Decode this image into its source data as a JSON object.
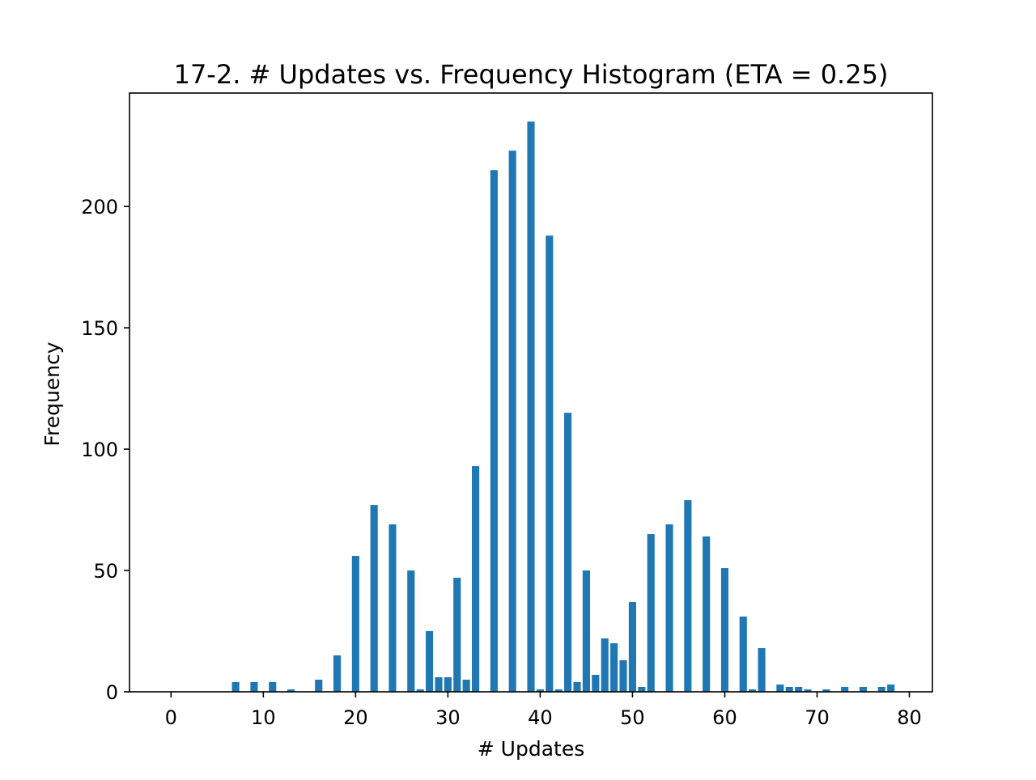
{
  "chart_data": {
    "type": "bar",
    "title": "17-2. # Updates vs. Frequency Histogram (ETA = 0.25)",
    "xlabel": "# Updates",
    "ylabel": "Frequency",
    "xlim": [
      -4.5,
      82.5
    ],
    "ylim": [
      0,
      246.75
    ],
    "xticks": [
      0,
      10,
      20,
      30,
      40,
      50,
      60,
      70,
      80
    ],
    "yticks": [
      0,
      50,
      100,
      150,
      200
    ],
    "bar_color": "#1f77b4",
    "grid": false,
    "legend": "none",
    "x": [
      7,
      9,
      11,
      13,
      16,
      18,
      20,
      22,
      24,
      26,
      27,
      28,
      29,
      30,
      31,
      32,
      33,
      35,
      37,
      39,
      40,
      41,
      42,
      43,
      44,
      45,
      46,
      47,
      48,
      49,
      50,
      51,
      52,
      54,
      56,
      58,
      60,
      62,
      63,
      64,
      66,
      67,
      68,
      69,
      71,
      73,
      75,
      77,
      78
    ],
    "values": [
      4,
      4,
      4,
      1,
      5,
      15,
      56,
      77,
      69,
      50,
      1,
      25,
      6,
      6,
      47,
      5,
      93,
      215,
      223,
      235,
      1,
      188,
      1,
      115,
      4,
      50,
      7,
      22,
      20,
      13,
      37,
      2,
      65,
      69,
      79,
      64,
      51,
      31,
      1,
      18,
      3,
      2,
      2,
      1,
      1,
      2,
      2,
      2,
      3
    ]
  }
}
